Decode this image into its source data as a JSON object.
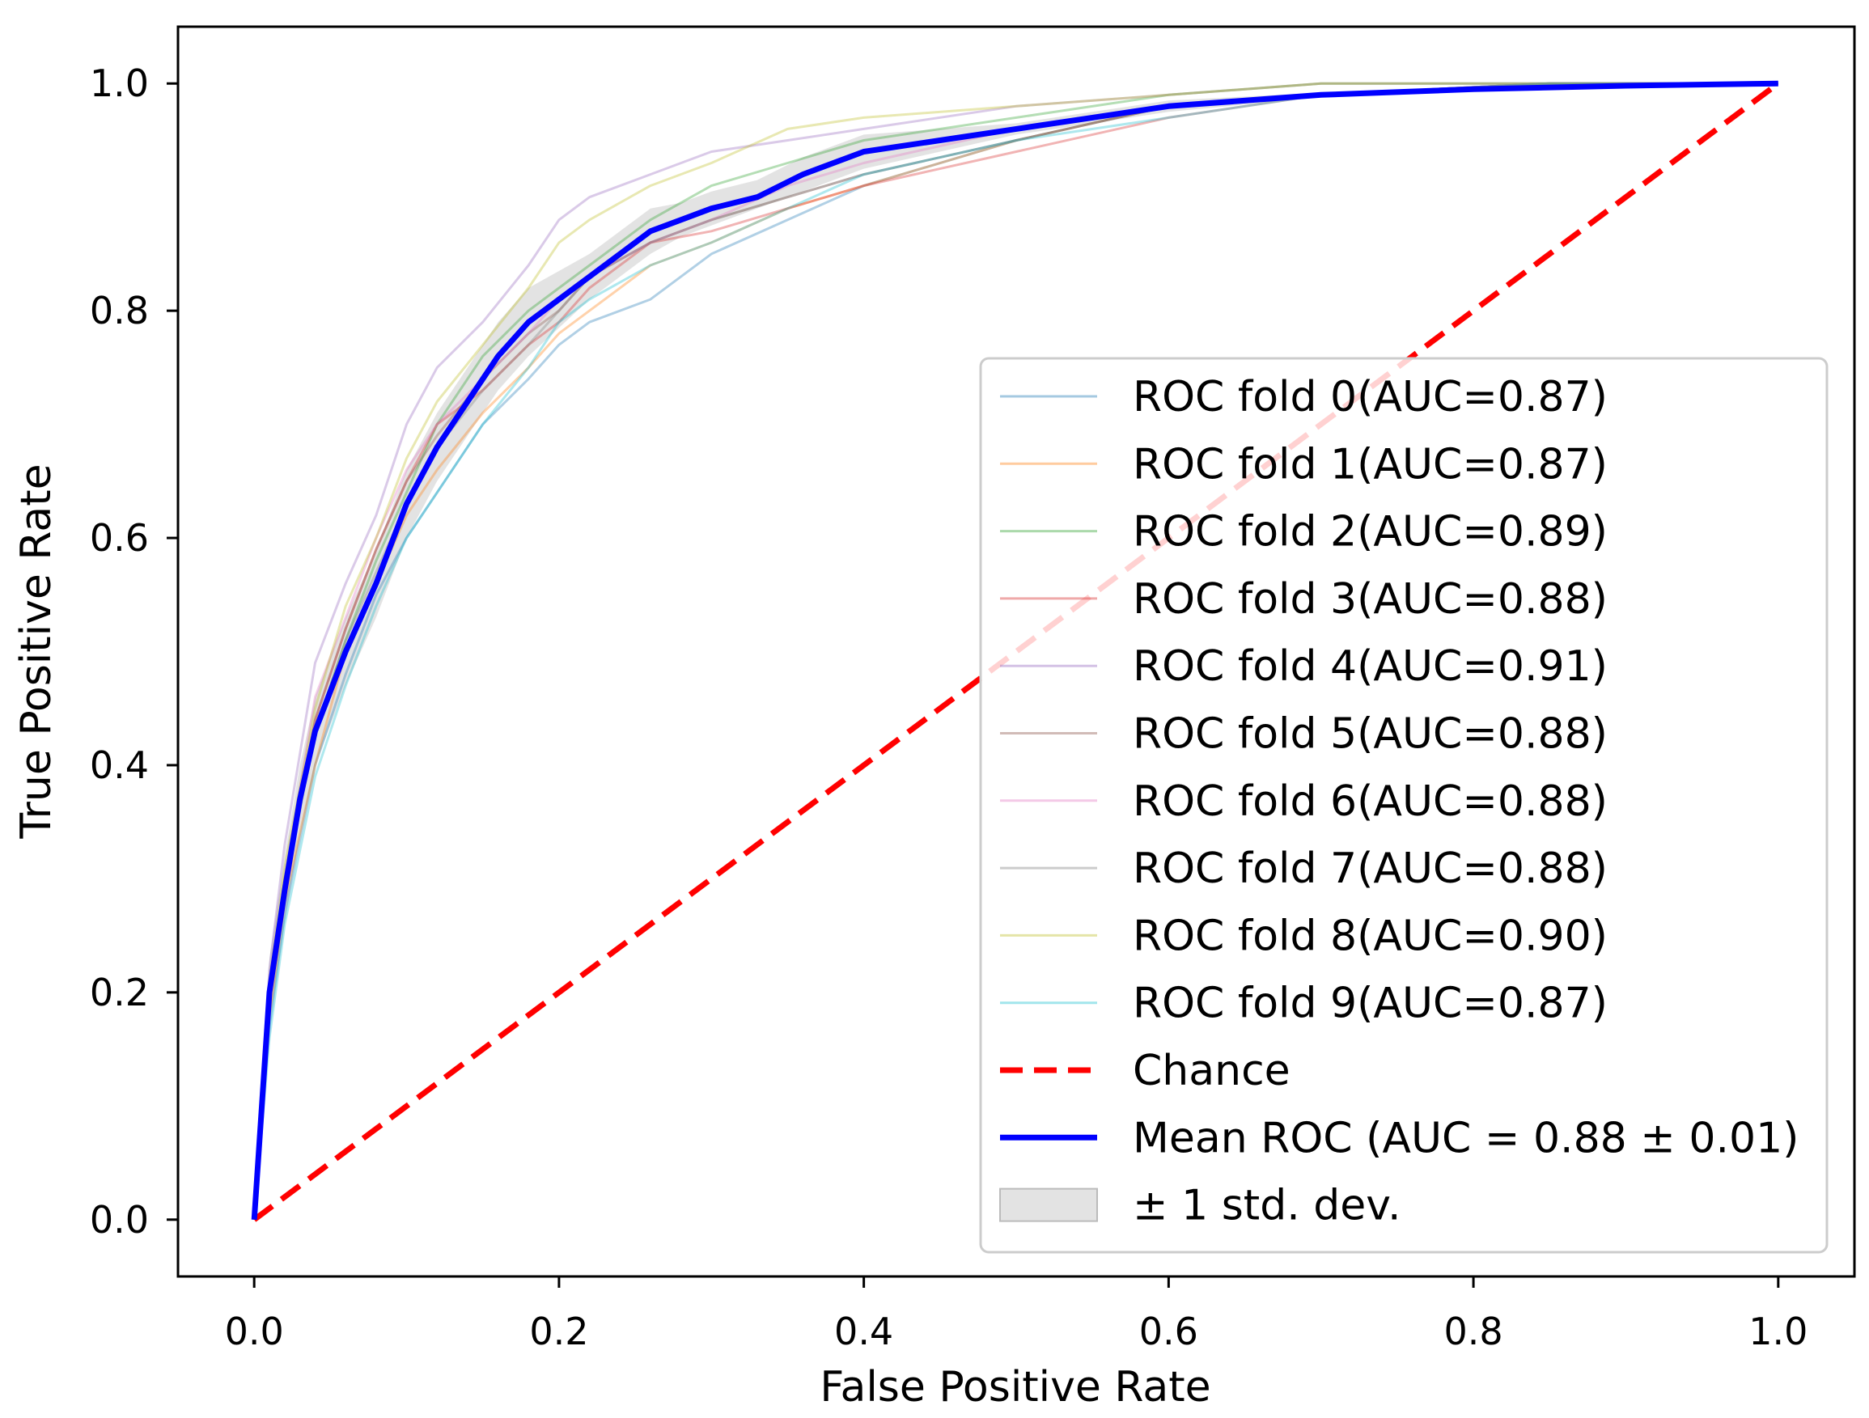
{
  "chart_data": {
    "type": "line",
    "title": "",
    "xlabel": "False Positive Rate",
    "ylabel": "True Positive Rate",
    "xlim": [
      -0.05,
      1.05
    ],
    "ylim": [
      -0.05,
      1.05
    ],
    "xticks": [
      0.0,
      0.2,
      0.4,
      0.6,
      0.8,
      1.0
    ],
    "yticks": [
      0.0,
      0.2,
      0.4,
      0.6,
      0.8,
      1.0
    ],
    "tick_labels_x": [
      "0.0",
      "0.2",
      "0.4",
      "0.6",
      "0.8",
      "1.0"
    ],
    "tick_labels_y": [
      "0.0",
      "0.2",
      "0.4",
      "0.6",
      "0.8",
      "1.0"
    ],
    "grid": false,
    "legend_position": "lower-right",
    "series": [
      {
        "name": "ROC fold 0(AUC=0.87)",
        "color": "#1f77b4",
        "x": [
          0,
          0.01,
          0.02,
          0.04,
          0.06,
          0.08,
          0.1,
          0.12,
          0.15,
          0.18,
          0.2,
          0.22,
          0.26,
          0.3,
          0.35,
          0.4,
          0.5,
          0.6,
          0.7,
          0.85,
          1.0
        ],
        "y": [
          0,
          0.17,
          0.27,
          0.4,
          0.48,
          0.55,
          0.6,
          0.64,
          0.7,
          0.74,
          0.77,
          0.79,
          0.81,
          0.85,
          0.88,
          0.91,
          0.95,
          0.98,
          0.99,
          1.0,
          1.0
        ]
      },
      {
        "name": "ROC fold 1(AUC=0.87)",
        "color": "#ff7f0e",
        "x": [
          0,
          0.01,
          0.02,
          0.04,
          0.06,
          0.08,
          0.1,
          0.12,
          0.15,
          0.18,
          0.2,
          0.22,
          0.26,
          0.3,
          0.35,
          0.4,
          0.5,
          0.6,
          0.7,
          0.85,
          1.0
        ],
        "y": [
          0,
          0.18,
          0.28,
          0.4,
          0.5,
          0.56,
          0.62,
          0.66,
          0.71,
          0.75,
          0.78,
          0.8,
          0.84,
          0.86,
          0.89,
          0.91,
          0.95,
          0.98,
          0.99,
          1.0,
          1.0
        ]
      },
      {
        "name": "ROC fold 2(AUC=0.89)",
        "color": "#2ca02c",
        "x": [
          0,
          0.01,
          0.02,
          0.04,
          0.06,
          0.08,
          0.1,
          0.12,
          0.15,
          0.18,
          0.2,
          0.22,
          0.26,
          0.3,
          0.35,
          0.4,
          0.5,
          0.6,
          0.7,
          0.85,
          1.0
        ],
        "y": [
          0,
          0.2,
          0.3,
          0.43,
          0.51,
          0.58,
          0.64,
          0.7,
          0.76,
          0.8,
          0.82,
          0.84,
          0.88,
          0.91,
          0.93,
          0.95,
          0.97,
          0.99,
          1.0,
          1.0,
          1.0
        ]
      },
      {
        "name": "ROC fold 3(AUC=0.88)",
        "color": "#d62728",
        "x": [
          0,
          0.01,
          0.02,
          0.04,
          0.06,
          0.08,
          0.1,
          0.12,
          0.15,
          0.18,
          0.2,
          0.22,
          0.26,
          0.3,
          0.35,
          0.4,
          0.5,
          0.6,
          0.7,
          0.85,
          1.0
        ],
        "y": [
          0,
          0.2,
          0.3,
          0.44,
          0.52,
          0.59,
          0.65,
          0.7,
          0.73,
          0.77,
          0.79,
          0.82,
          0.86,
          0.87,
          0.89,
          0.91,
          0.94,
          0.97,
          0.99,
          1.0,
          1.0
        ]
      },
      {
        "name": "ROC fold 4(AUC=0.91)",
        "color": "#9467bd",
        "x": [
          0,
          0.01,
          0.02,
          0.04,
          0.06,
          0.08,
          0.1,
          0.12,
          0.15,
          0.18,
          0.2,
          0.22,
          0.26,
          0.3,
          0.35,
          0.4,
          0.5,
          0.6,
          0.7,
          0.85,
          1.0
        ],
        "y": [
          0,
          0.22,
          0.33,
          0.49,
          0.56,
          0.62,
          0.7,
          0.75,
          0.79,
          0.84,
          0.88,
          0.9,
          0.92,
          0.94,
          0.95,
          0.96,
          0.98,
          0.99,
          1.0,
          1.0,
          1.0
        ]
      },
      {
        "name": "ROC fold 5(AUC=0.88)",
        "color": "#8c564b",
        "x": [
          0,
          0.01,
          0.02,
          0.04,
          0.06,
          0.08,
          0.1,
          0.12,
          0.15,
          0.18,
          0.2,
          0.22,
          0.26,
          0.3,
          0.35,
          0.4,
          0.5,
          0.6,
          0.7,
          0.85,
          1.0
        ],
        "y": [
          0,
          0.2,
          0.3,
          0.44,
          0.52,
          0.59,
          0.65,
          0.69,
          0.74,
          0.78,
          0.8,
          0.83,
          0.86,
          0.88,
          0.9,
          0.92,
          0.95,
          0.98,
          0.99,
          1.0,
          1.0
        ]
      },
      {
        "name": "ROC fold 6(AUC=0.88)",
        "color": "#e377c2",
        "x": [
          0,
          0.01,
          0.02,
          0.04,
          0.06,
          0.08,
          0.1,
          0.12,
          0.15,
          0.18,
          0.2,
          0.22,
          0.26,
          0.3,
          0.35,
          0.4,
          0.5,
          0.6,
          0.7,
          0.85,
          1.0
        ],
        "y": [
          0,
          0.2,
          0.3,
          0.46,
          0.53,
          0.6,
          0.66,
          0.7,
          0.74,
          0.78,
          0.81,
          0.83,
          0.86,
          0.88,
          0.91,
          0.93,
          0.96,
          0.98,
          0.99,
          1.0,
          1.0
        ]
      },
      {
        "name": "ROC fold 7(AUC=0.88)",
        "color": "#7f7f7f",
        "x": [
          0,
          0.01,
          0.02,
          0.04,
          0.06,
          0.08,
          0.1,
          0.12,
          0.15,
          0.18,
          0.2,
          0.22,
          0.26,
          0.3,
          0.35,
          0.4,
          0.5,
          0.6,
          0.7,
          0.85,
          1.0
        ],
        "y": [
          0,
          0.19,
          0.29,
          0.43,
          0.51,
          0.57,
          0.63,
          0.68,
          0.73,
          0.77,
          0.8,
          0.83,
          0.86,
          0.88,
          0.9,
          0.92,
          0.95,
          0.98,
          0.99,
          1.0,
          1.0
        ]
      },
      {
        "name": "ROC fold 8(AUC=0.90)",
        "color": "#bcbd22",
        "x": [
          0,
          0.01,
          0.02,
          0.04,
          0.06,
          0.08,
          0.1,
          0.12,
          0.15,
          0.18,
          0.2,
          0.22,
          0.26,
          0.3,
          0.35,
          0.4,
          0.5,
          0.6,
          0.7,
          0.85,
          1.0
        ],
        "y": [
          0,
          0.21,
          0.31,
          0.45,
          0.54,
          0.6,
          0.67,
          0.72,
          0.77,
          0.82,
          0.86,
          0.88,
          0.91,
          0.93,
          0.96,
          0.97,
          0.98,
          0.99,
          1.0,
          1.0,
          1.0
        ]
      },
      {
        "name": "ROC fold 9(AUC=0.87)",
        "color": "#17becf",
        "x": [
          0,
          0.01,
          0.02,
          0.04,
          0.06,
          0.08,
          0.1,
          0.12,
          0.15,
          0.18,
          0.2,
          0.22,
          0.26,
          0.3,
          0.35,
          0.4,
          0.5,
          0.6,
          0.7,
          0.85,
          1.0
        ],
        "y": [
          0,
          0.16,
          0.26,
          0.39,
          0.47,
          0.54,
          0.6,
          0.64,
          0.7,
          0.75,
          0.79,
          0.81,
          0.84,
          0.86,
          0.89,
          0.92,
          0.95,
          0.97,
          0.99,
          1.0,
          1.0
        ]
      }
    ],
    "chance": {
      "name": "Chance",
      "color": "#ff0000",
      "x": [
        0,
        1
      ],
      "y": [
        0,
        1
      ]
    },
    "mean": {
      "name": "Mean ROC (AUC = 0.88 ± 0.01)",
      "color": "#0000ff",
      "x": [
        0,
        0.005,
        0.01,
        0.02,
        0.03,
        0.04,
        0.06,
        0.08,
        0.1,
        0.12,
        0.14,
        0.16,
        0.18,
        0.2,
        0.22,
        0.24,
        0.26,
        0.28,
        0.3,
        0.33,
        0.36,
        0.4,
        0.45,
        0.5,
        0.55,
        0.6,
        0.7,
        0.8,
        0.9,
        1.0
      ],
      "y": [
        0,
        0.1,
        0.2,
        0.29,
        0.37,
        0.43,
        0.5,
        0.56,
        0.63,
        0.68,
        0.72,
        0.76,
        0.79,
        0.81,
        0.83,
        0.85,
        0.87,
        0.88,
        0.89,
        0.9,
        0.92,
        0.94,
        0.95,
        0.96,
        0.97,
        0.98,
        0.99,
        0.995,
        0.998,
        1.0
      ]
    },
    "std_band": {
      "name": "± 1 std. dev.",
      "color": "#cccccc",
      "lower": [
        0,
        0.08,
        0.17,
        0.26,
        0.34,
        0.4,
        0.47,
        0.53,
        0.6,
        0.65,
        0.69,
        0.73,
        0.76,
        0.785,
        0.81,
        0.83,
        0.85,
        0.865,
        0.875,
        0.89,
        0.905,
        0.925,
        0.94,
        0.955,
        0.965,
        0.975,
        0.988,
        0.994,
        0.997,
        1.0
      ],
      "upper": [
        0,
        0.12,
        0.23,
        0.32,
        0.4,
        0.46,
        0.53,
        0.59,
        0.66,
        0.71,
        0.75,
        0.79,
        0.82,
        0.835,
        0.85,
        0.87,
        0.89,
        0.895,
        0.905,
        0.915,
        0.935,
        0.955,
        0.96,
        0.965,
        0.975,
        0.985,
        0.992,
        0.996,
        0.999,
        1.0
      ]
    }
  }
}
